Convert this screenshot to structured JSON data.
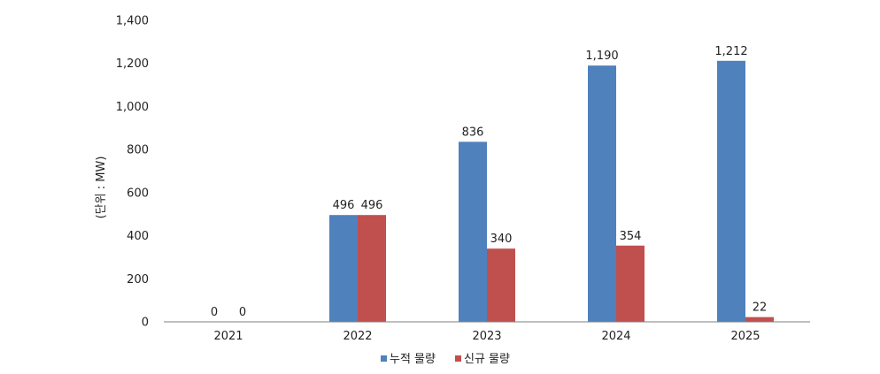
{
  "chart_data": {
    "type": "bar",
    "categories": [
      "2021",
      "2022",
      "2023",
      "2024",
      "2025"
    ],
    "series": [
      {
        "name": "누적 물량",
        "values": [
          0,
          496,
          836,
          1190,
          1212
        ],
        "color": "#4F81BD"
      },
      {
        "name": "신규 물량",
        "values": [
          0,
          496,
          340,
          354,
          22
        ],
        "color": "#C0504D"
      }
    ],
    "data_labels": [
      [
        "0",
        "496",
        "836",
        "1,190",
        "1,212"
      ],
      [
        "0",
        "496",
        "340",
        "354",
        "22"
      ]
    ],
    "ylabel": "(단위 : MW)",
    "ylim": [
      0,
      1400
    ],
    "yticks": [
      0,
      200,
      400,
      600,
      800,
      1000,
      1200,
      1400
    ],
    "ytick_labels": [
      "0",
      "200",
      "400",
      "600",
      "800",
      "1,000",
      "1,200",
      "1,400"
    ],
    "grid": false,
    "legend_position": "bottom"
  }
}
